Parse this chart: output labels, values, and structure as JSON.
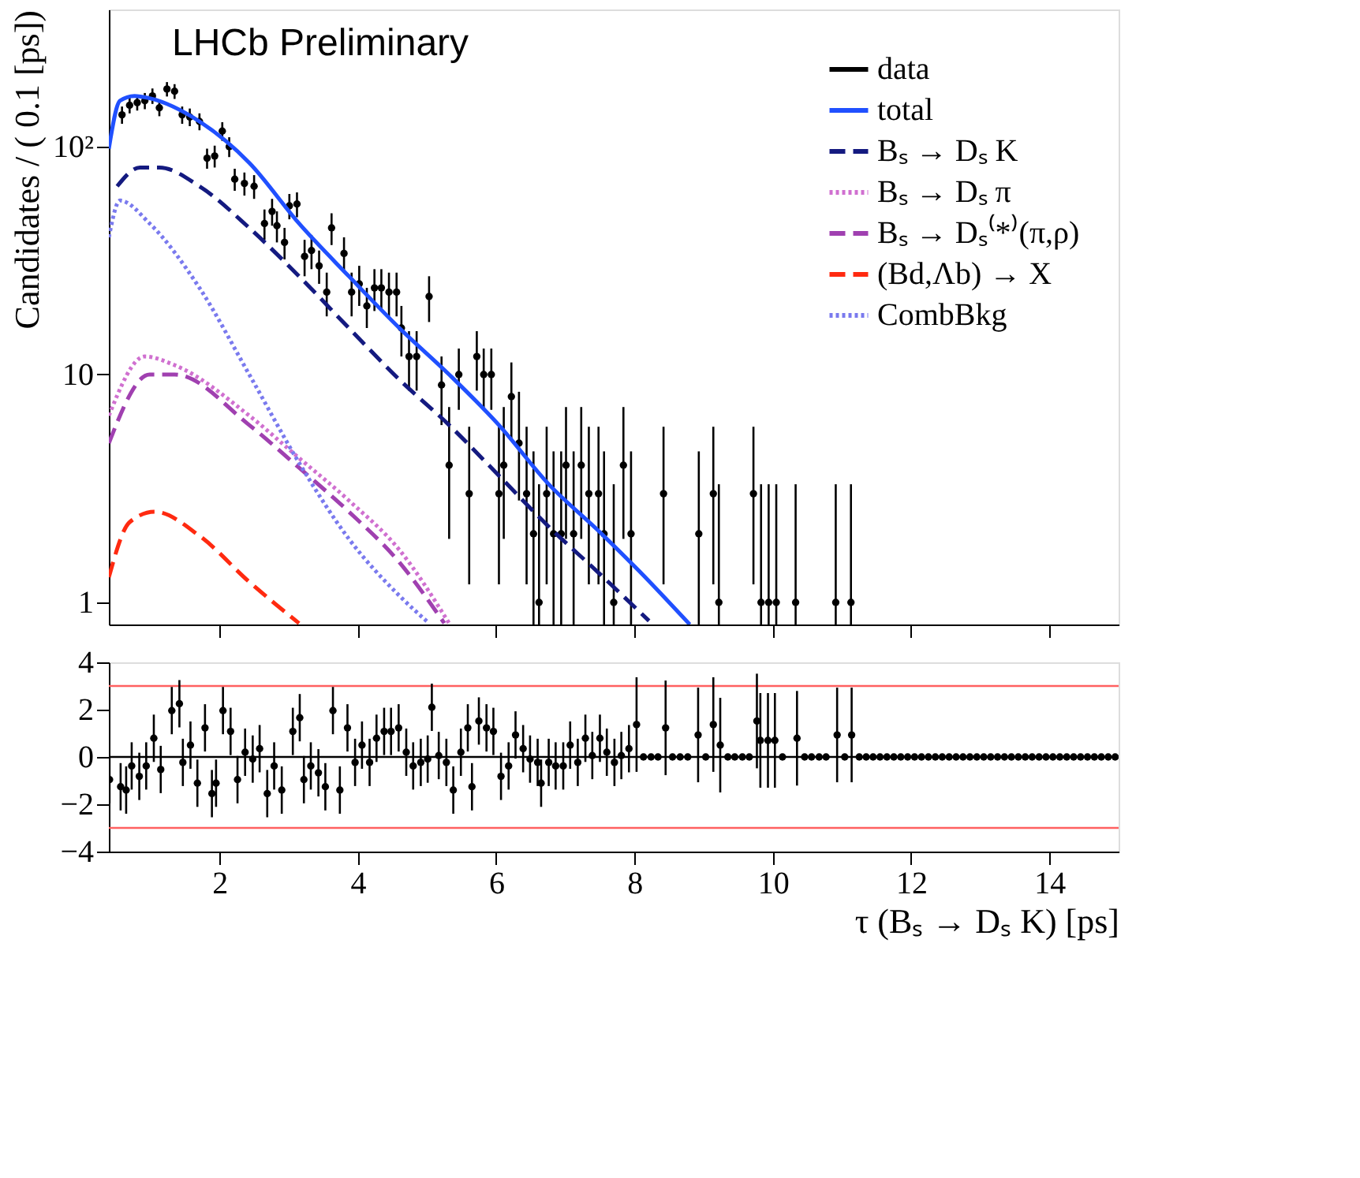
{
  "chart_data": [
    {
      "type": "line",
      "ylabel": "Candidates / ( 0.1 [ps])",
      "annotations": [
        "LHCb Preliminary"
      ],
      "xlim": [
        0.4,
        15
      ],
      "xticks": [
        2,
        4,
        6,
        8,
        10,
        12,
        14
      ],
      "ylim": [
        0.8,
        400
      ],
      "log": true,
      "yticks": [
        1,
        10,
        {
          "value": 100,
          "label": "10²"
        }
      ],
      "tick_labels": "y",
      "legend": "top right",
      "grid": false,
      "series": [
        {
          "name": "data",
          "type": "scatter",
          "marker": "circle",
          "color": "#000000",
          "x": [
            0.59,
            0.7,
            0.81,
            0.92,
            1.03,
            1.13,
            1.24,
            1.35,
            1.46,
            1.57,
            1.71,
            1.82,
            1.93,
            2.04,
            2.14,
            2.22,
            2.36,
            2.5,
            2.65,
            2.76,
            2.83,
            2.94,
            3.01,
            3.12,
            3.23,
            3.33,
            3.44,
            3.55,
            3.62,
            3.8,
            3.91,
            4.02,
            4.13,
            4.24,
            4.34,
            4.45,
            4.56,
            4.63,
            4.74,
            4.85,
            5.03,
            5.21,
            5.32,
            5.46,
            5.61,
            5.72,
            5.82,
            5.93,
            6.04,
            6.11,
            6.22,
            6.33,
            6.44,
            6.54,
            6.62,
            6.73,
            6.83,
            6.94,
            7.01,
            7.12,
            7.23,
            7.34,
            7.48,
            7.56,
            7.7,
            7.84,
            7.95,
            8.42,
            8.93,
            9.14,
            9.22,
            9.72,
            9.83,
            9.94,
            10.05,
            10.33,
            10.91,
            11.13
          ],
          "values": [
            138,
            152,
            156,
            159,
            167,
            148,
            179,
            175,
            138,
            135,
            129,
            89,
            91,
            117,
            100,
            72,
            69,
            67,
            46,
            52,
            45,
            38,
            55,
            56,
            33,
            35,
            30,
            23,
            44,
            34,
            23,
            25,
            20,
            24,
            24,
            23,
            23,
            16,
            12,
            12,
            22,
            9,
            4,
            10,
            3,
            12,
            10,
            10,
            3,
            4,
            8,
            5,
            3,
            2,
            1,
            3,
            2,
            2,
            4,
            2,
            4,
            3,
            3,
            2,
            1,
            4,
            2,
            3,
            2,
            3,
            1,
            3,
            1,
            1,
            1,
            1,
            1,
            1
          ],
          "errors": [
            12,
            12,
            12,
            13,
            13,
            12,
            13,
            13,
            12,
            12,
            11,
            9,
            10,
            11,
            10,
            8,
            8,
            8,
            7,
            7,
            7,
            6,
            7,
            7,
            6,
            6,
            5,
            5,
            7,
            6,
            5,
            5,
            4,
            5,
            5,
            5,
            5,
            4,
            3.5,
            3.5,
            5,
            3,
            [
              1.9,
              7.2
            ],
            3,
            [
              1.2,
              5.9
            ],
            3.5,
            3,
            3,
            [
              1.2,
              5.9
            ],
            [
              1.9,
              7.2
            ],
            [
              5.1,
              11.3
            ],
            [
              2.8,
              8.4
            ],
            [
              1.2,
              5.9
            ],
            [
              0.8,
              4.6
            ],
            [
              0.8,
              3.3
            ],
            [
              1.2,
              5.9
            ],
            [
              0.8,
              4.6
            ],
            [
              0.8,
              4.6
            ],
            [
              1.9,
              7.2
            ],
            [
              0.8,
              4.6
            ],
            [
              1.9,
              7.2
            ],
            [
              1.2,
              5.9
            ],
            [
              1.2,
              5.9
            ],
            [
              0.8,
              4.6
            ],
            [
              0.8,
              3.3
            ],
            [
              1.9,
              7.2
            ],
            [
              0.8,
              4.6
            ],
            [
              1.2,
              5.9
            ],
            [
              0.8,
              4.6
            ],
            [
              1.2,
              5.9
            ],
            [
              0.8,
              3.3
            ],
            [
              1.2,
              5.9
            ],
            [
              0.8,
              3.3
            ],
            [
              0.8,
              3.3
            ],
            [
              0.8,
              3.3
            ],
            [
              0.8,
              3.3
            ],
            [
              0.8,
              3.3
            ],
            [
              0.8,
              3.3
            ]
          ]
        },
        {
          "name": "total",
          "color": "#2050ff",
          "line_style": "solid",
          "x": [
            0.4,
            0.56,
            0.77,
            0.99,
            1.71,
            2.43,
            3.15,
            3.87,
            4.6,
            5.32,
            6.04,
            6.76,
            7.48,
            8.06,
            8.8
          ],
          "values": [
            98,
            159,
            167,
            163,
            129,
            85,
            46,
            27,
            16,
            10,
            6,
            3.3,
            2.06,
            1.38,
            0.8
          ]
        },
        {
          "name": "Bₛ → Dₛ K",
          "color": "#141a80",
          "line_style": "dashed",
          "x": [
            0.52,
            0.85,
            1.13,
            1.71,
            2.43,
            3.15,
            3.87,
            4.6,
            5.32,
            6.04,
            6.76,
            7.48,
            8.21
          ],
          "values": [
            67,
            81,
            81,
            67,
            44,
            27,
            16,
            9.5,
            6.0,
            3.6,
            2.15,
            1.35,
            0.83
          ]
        },
        {
          "name": "Bₛ → Dₛ π",
          "color": "#d070d0",
          "line_style": "dotted",
          "x": [
            0.4,
            0.92,
            1.35,
            2.43,
            3.15,
            3.87,
            4.6,
            5.32
          ],
          "values": [
            6.6,
            12,
            11,
            6.6,
            4.3,
            2.8,
            1.7,
            0.81
          ]
        },
        {
          "name": "Bₛ → Dₛ⁽*⁾(π,ρ)",
          "color": "#a040b0",
          "line_style": "dashed",
          "x": [
            0.4,
            0.99,
            1.35,
            2.43,
            3.15,
            3.87,
            4.6,
            5.25
          ],
          "values": [
            5.0,
            10,
            10,
            6.0,
            3.9,
            2.5,
            1.5,
            0.81
          ]
        },
        {
          "name": "(Bd,Λb) → X",
          "color": "#ff2a10",
          "line_style": "dashed",
          "x": [
            0.4,
            0.7,
            1.06,
            1.71,
            2.43,
            3.15
          ],
          "values": [
            1.29,
            2.25,
            2.5,
            1.96,
            1.23,
            0.81
          ]
        },
        {
          "name": "CombBkg",
          "color": "#7a7aee",
          "line_style": "dotted",
          "x": [
            0.4,
            0.56,
            0.99,
            1.71,
            2.43,
            3.15,
            3.87,
            4.6,
            5.03
          ],
          "values": [
            40,
            58,
            46,
            24,
            10,
            4.1,
            1.9,
            1.07,
            0.81
          ]
        }
      ]
    },
    {
      "type": "scatter",
      "xlabel": "τ (Bₛ → Dₛ K) [ps]",
      "xlim": [
        0.4,
        15
      ],
      "xticks": [
        2,
        4,
        6,
        8,
        10,
        12,
        14
      ],
      "ylim": [
        -4,
        4
      ],
      "yticks": [
        -4,
        -2,
        0,
        2,
        4
      ],
      "grid": false,
      "marker": "circle",
      "ref_lines": [
        {
          "axis": "y",
          "value": 3,
          "color": "#ff6060"
        },
        {
          "axis": "y",
          "value": -3,
          "color": "#ff6060"
        },
        {
          "axis": "y",
          "value": 0,
          "color": "#000000"
        }
      ],
      "series": [
        {
          "color": "#000000",
          "x": [
            0.41,
            0.57,
            0.65,
            0.73,
            0.84,
            0.94,
            1.05,
            1.15,
            1.31,
            1.42,
            1.47,
            1.58,
            1.68,
            1.79,
            1.89,
            1.95,
            2.05,
            2.16,
            2.26,
            2.37,
            2.48,
            2.58,
            2.69,
            2.79,
            2.9,
            3.06,
            3.16,
            3.22,
            3.32,
            3.43,
            3.53,
            3.64,
            3.74,
            3.85,
            3.96,
            4.06,
            4.17,
            4.27,
            4.38,
            4.48,
            4.59,
            4.7,
            4.8,
            4.91,
            5.01,
            5.07,
            5.17,
            5.28,
            5.38,
            5.49,
            5.59,
            5.65,
            5.75,
            5.86,
            5.96,
            6.07,
            6.18,
            6.28,
            6.39,
            6.49,
            6.6,
            6.65,
            6.76,
            6.86,
            6.97,
            7.07,
            7.18,
            7.29,
            7.39,
            7.5,
            7.6,
            7.71,
            7.81,
            7.92,
            8.03,
            8.13,
            8.24,
            8.34,
            8.45,
            8.55,
            8.66,
            8.77,
            8.92,
            9.03,
            9.14,
            9.24,
            9.35,
            9.45,
            9.56,
            9.66,
            9.77,
            9.82,
            9.93,
            10.03,
            10.14,
            10.35,
            10.46,
            10.56,
            10.67,
            10.77,
            10.93,
            11.04,
            11.14,
            11.25,
            11.35,
            11.45,
            11.55,
            11.65,
            11.75,
            11.85,
            11.95,
            12.05,
            12.15,
            12.25,
            12.35,
            12.45,
            12.55,
            12.65,
            12.75,
            12.85,
            12.95,
            13.05,
            13.15,
            13.25,
            13.35,
            13.45,
            13.55,
            13.65,
            13.75,
            13.85,
            13.95,
            14.05,
            14.15,
            14.25,
            14.35,
            14.45,
            14.55,
            14.65,
            14.75,
            14.85,
            14.95
          ],
          "values": [
            -0.96,
            -1.26,
            -1.4,
            -0.38,
            -0.82,
            -0.38,
            0.79,
            -0.53,
            1.96,
            2.25,
            -0.23,
            0.5,
            -1.11,
            1.23,
            -1.55,
            -1.11,
            1.96,
            1.08,
            -0.96,
            0.2,
            -0.09,
            0.35,
            -1.55,
            -0.38,
            -1.4,
            1.08,
            1.66,
            -0.96,
            -0.38,
            -0.67,
            -1.26,
            1.96,
            -1.4,
            1.23,
            -0.23,
            0.5,
            -0.23,
            0.79,
            1.08,
            1.08,
            1.23,
            0.2,
            -0.38,
            -0.23,
            -0.09,
            2.1,
            0.06,
            -0.23,
            -1.4,
            0.2,
            1.23,
            -1.26,
            1.52,
            1.23,
            1.08,
            -0.82,
            -0.38,
            0.93,
            0.35,
            -0.09,
            -0.23,
            -1.11,
            -0.23,
            -0.38,
            -0.38,
            0.5,
            -0.23,
            0.79,
            0.06,
            0.79,
            0.2,
            -0.23,
            0.06,
            0.35,
            1.37,
            0,
            0,
            0,
            1.23,
            0,
            0,
            0,
            0.93,
            0,
            1.37,
            0.5,
            0,
            0,
            0,
            0,
            1.52,
            0.7,
            0.7,
            0.7,
            0,
            0.79,
            0,
            0,
            0,
            0,
            0.93,
            0,
            0.93,
            0,
            0,
            0,
            0,
            0,
            0,
            0,
            0,
            0,
            0,
            0,
            0,
            0,
            0,
            0,
            0,
            0,
            0,
            0,
            0,
            0,
            0,
            0,
            0,
            0,
            0,
            0,
            0,
            0,
            0,
            0,
            0,
            0,
            0,
            0,
            0,
            0,
            0
          ],
          "errors": [
            1,
            1,
            1,
            1,
            1,
            1,
            1,
            1,
            1,
            1,
            1,
            1,
            1,
            1,
            1,
            1,
            1,
            1,
            1,
            1,
            1,
            1,
            1,
            1,
            1,
            1,
            1,
            1,
            1,
            1,
            1,
            1,
            1,
            1,
            1,
            1,
            1,
            1,
            1,
            1,
            1,
            1,
            1,
            1,
            1,
            1,
            1,
            1,
            1,
            1,
            1,
            1,
            1,
            1,
            1,
            1,
            1,
            1,
            1,
            1,
            1,
            1,
            1,
            1,
            1,
            1,
            1,
            1,
            1,
            1,
            1,
            1,
            1,
            1,
            2,
            null,
            null,
            null,
            2,
            null,
            null,
            null,
            2,
            null,
            2,
            2,
            null,
            null,
            null,
            null,
            2,
            2,
            2,
            2,
            null,
            2,
            null,
            null,
            null,
            null,
            2,
            null,
            2,
            null,
            null,
            null,
            null,
            null,
            null,
            null,
            null,
            null,
            null,
            null,
            null,
            null,
            null,
            null,
            null,
            null,
            null,
            null,
            null,
            null,
            null,
            null,
            null,
            null,
            null,
            null,
            null,
            null,
            null,
            null,
            null,
            null,
            null,
            null,
            null,
            null,
            null
          ]
        }
      ]
    }
  ]
}
